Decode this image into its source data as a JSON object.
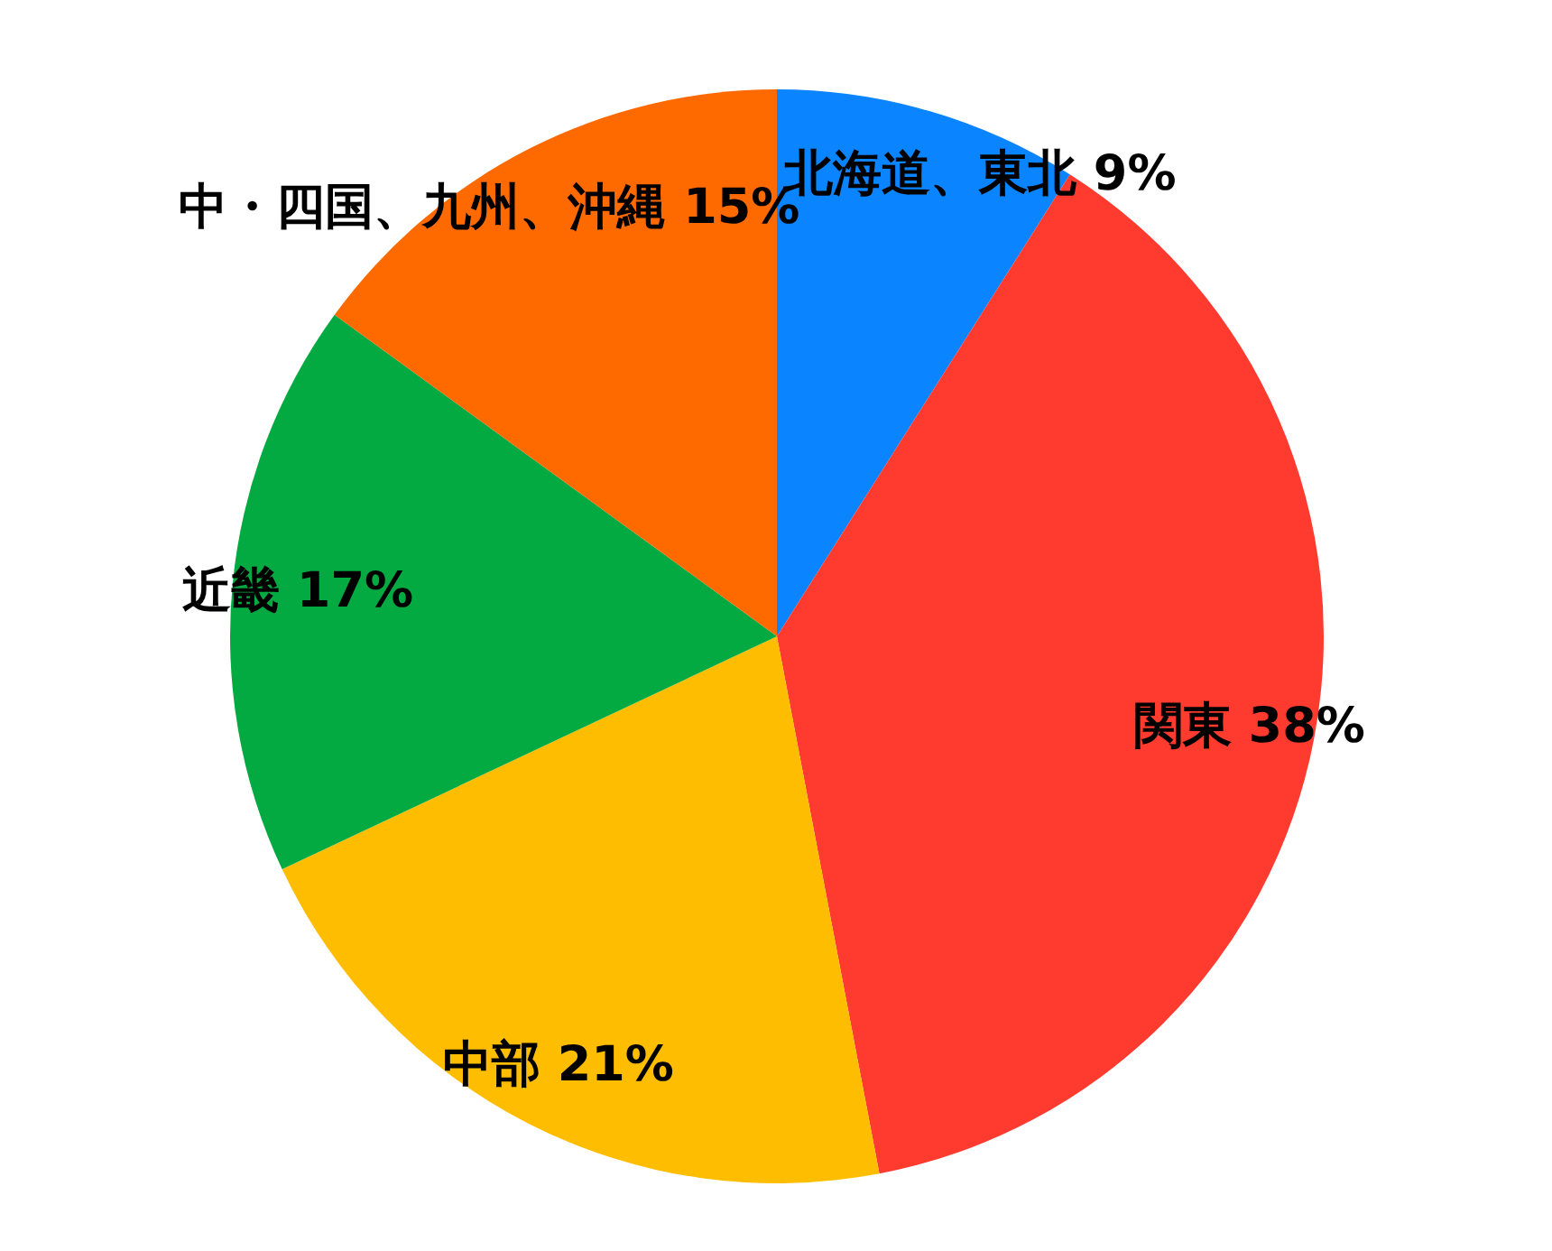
{
  "chart_data": {
    "type": "pie",
    "categories": [
      "北海道、東北",
      "関東",
      "中部",
      "近畿",
      "中・四国、九州、沖縄"
    ],
    "values": [
      9,
      38,
      21,
      17,
      15
    ],
    "value_labels": [
      "9%",
      "38%",
      "21%",
      "17%",
      "15%"
    ],
    "colors": [
      "#0a84ff",
      "#ff3b30",
      "#ffbd00",
      "#03a941",
      "#ff6a00"
    ]
  }
}
